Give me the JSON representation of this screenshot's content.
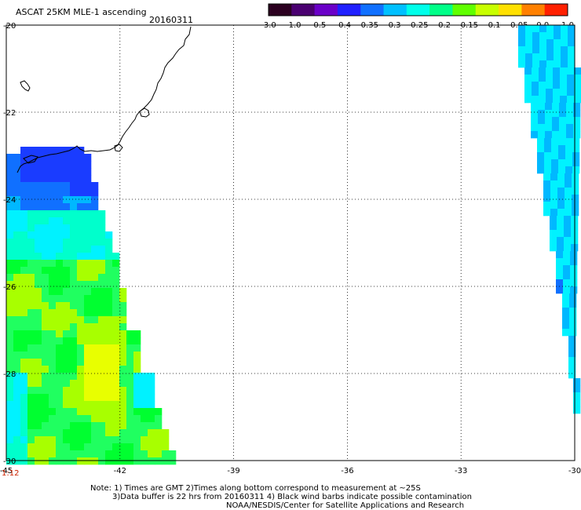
{
  "header": {
    "title": "ASCAT 25KM MLE-1 ascending",
    "date": "20160311"
  },
  "colorbar": {
    "labels": [
      "-3.0",
      "-1.0",
      "-0.5",
      "-0.4",
      "-0.35",
      "-0.3",
      "-0.25",
      "-0.2",
      "-0.15",
      "-0.1",
      "-0.05",
      "0.0",
      "1.0"
    ],
    "colors": [
      "#2b0020",
      "#4a0070",
      "#6a00c8",
      "#2020ff",
      "#1070ff",
      "#00c0ff",
      "#00ffea",
      "#00ff88",
      "#60ff00",
      "#c8ff00",
      "#ffe000",
      "#ff8000",
      "#ff2000"
    ]
  },
  "map": {
    "x_axis": {
      "min": -45,
      "max": -30,
      "ticks": [
        -45,
        -42,
        -39,
        -36,
        -33,
        -30
      ],
      "labels": [
        "-45",
        "-42",
        "-39",
        "-36",
        "-33",
        "-30"
      ]
    },
    "y_axis": {
      "min": -30,
      "max": -20,
      "ticks": [
        -20,
        -22,
        -24,
        -26,
        -28,
        -30
      ],
      "labels": [
        "-20",
        "-22",
        "-24",
        "-26",
        "-28",
        "-30"
      ]
    },
    "grid": true,
    "grid_style": "dotted",
    "palette": {
      "deep_blue": "#1a3cff",
      "blue": "#1070ff",
      "light_blue": "#00b8ff",
      "cyan": "#00f2ff",
      "aqua": "#00ffcc",
      "green": "#20ff60",
      "bright_green": "#00ff30",
      "lime": "#a8ff00",
      "yellow": "#e8ff00"
    },
    "time_label": "1:12"
  },
  "notes": {
    "line1": "Note: 1) Times are GMT 2)Times along bottom correspond to measurement at ~25S",
    "line2": "3)Data buffer is 22 hrs from 20160311 4) Black wind barbs indicate possible contamination",
    "line3": "NOAA/NESDIS/Center for Satellite Applications and Research"
  }
}
